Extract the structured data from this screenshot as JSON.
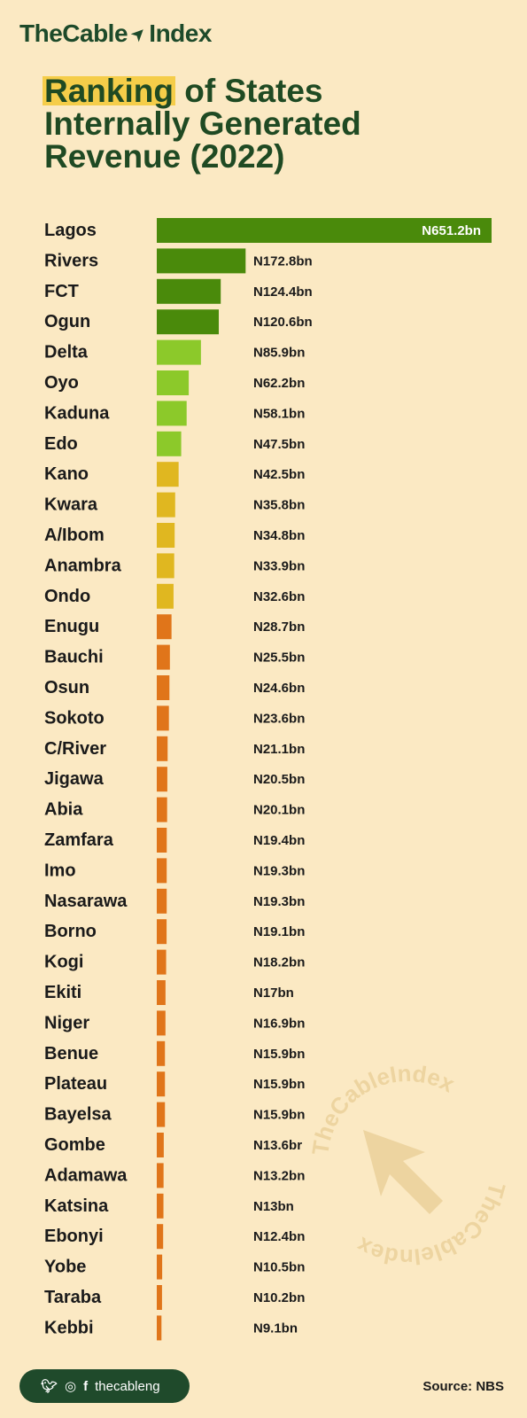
{
  "brand": {
    "name": "TheCable",
    "suffix": "Index"
  },
  "title": {
    "highlight": "Ranking",
    "rest_line1": " of States",
    "line2": "Internally Generated",
    "line3": "Revenue (2022)"
  },
  "colors": {
    "background": "#fbe9c3",
    "dark_green": "#4a8a0b",
    "light_green": "#8cc92a",
    "yellow": "#e0b720",
    "orange": "#e0751a",
    "title_green": "#1f4a23"
  },
  "chart_data": {
    "type": "bar",
    "orientation": "horizontal",
    "categories": [
      "Lagos",
      "Rivers",
      "FCT",
      "Ogun",
      "Delta",
      "Oyo",
      "Kaduna",
      "Edo",
      "Kano",
      "Kwara",
      "A/Ibom",
      "Anambra",
      "Ondo",
      "Enugu",
      "Bauchi",
      "Osun",
      "Sokoto",
      "C/River",
      "Jigawa",
      "Abia",
      "Zamfara",
      "Imo",
      "Nasarawa",
      "Borno",
      "Kogi",
      "Ekiti",
      "Niger",
      "Benue",
      "Plateau",
      "Bayelsa",
      "Gombe",
      "Adamawa",
      "Katsina",
      "Ebonyi",
      "Yobe",
      "Taraba",
      "Kebbi"
    ],
    "values": [
      651.2,
      172.8,
      124.4,
      120.6,
      85.9,
      62.2,
      58.1,
      47.5,
      42.5,
      35.8,
      34.8,
      33.9,
      32.6,
      28.7,
      25.5,
      24.6,
      23.6,
      21.1,
      20.5,
      20.1,
      19.4,
      19.3,
      19.3,
      19.1,
      18.2,
      17,
      16.9,
      15.9,
      15.9,
      15.9,
      13.6,
      13.2,
      13,
      12.4,
      10.5,
      10.2,
      9.1
    ],
    "labels": [
      "N651.2bn",
      "N172.8bn",
      "N124.4bn",
      "N120.6bn",
      "N85.9bn",
      "N62.2bn",
      "N58.1bn",
      "N47.5bn",
      "N42.5bn",
      "N35.8bn",
      "N34.8bn",
      "N33.9bn",
      "N32.6bn",
      "N28.7bn",
      "N25.5bn",
      "N24.6bn",
      "N23.6bn",
      "N21.1bn",
      "N20.5bn",
      "N20.1bn",
      "N19.4bn",
      "N19.3bn",
      "N19.3bn",
      "N19.1bn",
      "N18.2bn",
      "N17bn",
      "N16.9bn",
      "N15.9bn",
      "N15.9bn",
      "N15.9bn",
      "N13.6br",
      "N13.2bn",
      "N13bn",
      "N12.4bn",
      "N10.5bn",
      "N10.2bn",
      "N9.1bn"
    ],
    "bar_colors": [
      "#4a8a0b",
      "#4a8a0b",
      "#4a8a0b",
      "#4a8a0b",
      "#8cc92a",
      "#8cc92a",
      "#8cc92a",
      "#8cc92a",
      "#e0b720",
      "#e0b720",
      "#e0b720",
      "#e0b720",
      "#e0b720",
      "#e0751a",
      "#e0751a",
      "#e0751a",
      "#e0751a",
      "#e0751a",
      "#e0751a",
      "#e0751a",
      "#e0751a",
      "#e0751a",
      "#e0751a",
      "#e0751a",
      "#e0751a",
      "#e0751a",
      "#e0751a",
      "#e0751a",
      "#e0751a",
      "#e0751a",
      "#e0751a",
      "#e0751a",
      "#e0751a",
      "#e0751a",
      "#e0751a",
      "#e0751a",
      "#e0751a"
    ],
    "unit": "N billion",
    "title": "Ranking of States Internally Generated Revenue (2022)",
    "xlim": [
      0,
      651.2
    ],
    "grid": false,
    "legend": "none"
  },
  "watermark": {
    "text_top": "TheCableIndex",
    "text_bottom": "TheCableIndex",
    "icon": "arrow-icon"
  },
  "footer": {
    "handle": "thecableng",
    "source": "Source: NBS",
    "social_icons": [
      "twitter-icon",
      "instagram-icon",
      "facebook-icon"
    ]
  }
}
